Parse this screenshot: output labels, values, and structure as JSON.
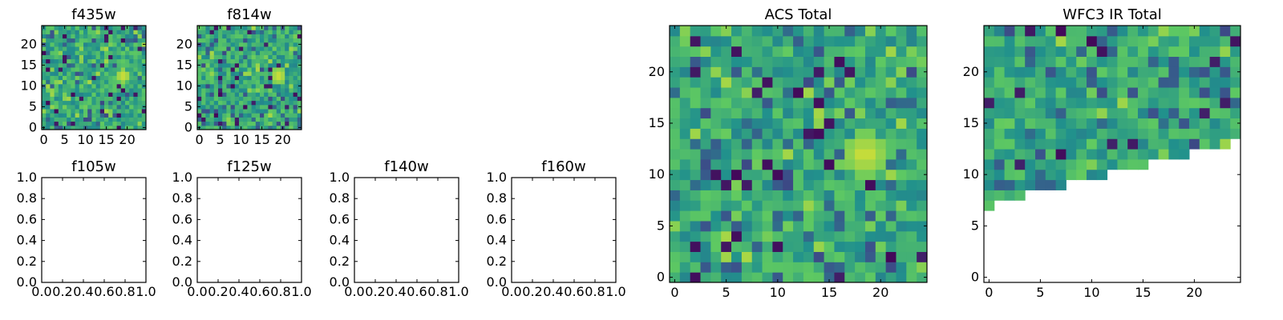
{
  "figure": {
    "colors": {
      "background": "#ffffff",
      "axis": "#000000",
      "colormap": [
        "#440154",
        "#3b528b",
        "#21918c",
        "#5ec962",
        "#fde725"
      ]
    }
  },
  "chart_data": [
    {
      "type": "heatmap",
      "title": "f435w",
      "grid_size": 25,
      "xlim": [
        -0.5,
        24.5
      ],
      "ylim": [
        -0.5,
        24.5
      ],
      "xticks": [
        0,
        5,
        10,
        15,
        20
      ],
      "yticks": [
        0,
        5,
        10,
        15,
        20
      ],
      "xtick_labels": [
        "0",
        "5",
        "10",
        "15",
        "20"
      ],
      "ytick_labels": [
        "0",
        "5",
        "10",
        "15",
        "20"
      ],
      "colormap": "viridis",
      "valid_region": "full",
      "seed": 11,
      "peak": {
        "x": 19,
        "y": 12.5,
        "radius": 1.8
      },
      "grid": false
    },
    {
      "type": "heatmap",
      "title": "f814w",
      "grid_size": 25,
      "xlim": [
        -0.5,
        24.5
      ],
      "ylim": [
        -0.5,
        24.5
      ],
      "xticks": [
        0,
        5,
        10,
        15,
        20
      ],
      "yticks": [
        0,
        5,
        10,
        15,
        20
      ],
      "xtick_labels": [
        "0",
        "5",
        "10",
        "15",
        "20"
      ],
      "ytick_labels": [
        "0",
        "5",
        "10",
        "15",
        "20"
      ],
      "colormap": "viridis",
      "valid_region": "full",
      "seed": 23,
      "peak": {
        "x": 19,
        "y": 12.5,
        "radius": 2.0
      },
      "grid": false
    },
    {
      "type": "empty",
      "title": "f105w",
      "xlim": [
        0,
        1
      ],
      "ylim": [
        0,
        1
      ],
      "xtick_labels": [
        "0.0",
        "0.2",
        "0.4",
        "0.6",
        "0.8",
        "1.0"
      ],
      "ytick_labels": [
        "0.0",
        "0.2",
        "0.4",
        "0.6",
        "0.8",
        "1.0"
      ]
    },
    {
      "type": "empty",
      "title": "f125w",
      "xlim": [
        0,
        1
      ],
      "ylim": [
        0,
        1
      ],
      "xtick_labels": [
        "0.0",
        "0.2",
        "0.4",
        "0.6",
        "0.8",
        "1.0"
      ],
      "ytick_labels": [
        "0.0",
        "0.2",
        "0.4",
        "0.6",
        "0.8",
        "1.0"
      ]
    },
    {
      "type": "empty",
      "title": "f140w",
      "xlim": [
        0,
        1
      ],
      "ylim": [
        0,
        1
      ],
      "xtick_labels": [
        "0.0",
        "0.2",
        "0.4",
        "0.6",
        "0.8",
        "1.0"
      ],
      "ytick_labels": [
        "0.0",
        "0.2",
        "0.4",
        "0.6",
        "0.8",
        "1.0"
      ]
    },
    {
      "type": "empty",
      "title": "f160w",
      "xlim": [
        0,
        1
      ],
      "ylim": [
        0,
        1
      ],
      "xtick_labels": [
        "0.0",
        "0.2",
        "0.4",
        "0.6",
        "0.8",
        "1.0"
      ],
      "ytick_labels": [
        "0.0",
        "0.2",
        "0.4",
        "0.6",
        "0.8",
        "1.0"
      ]
    },
    {
      "type": "heatmap",
      "title": "ACS Total",
      "grid_size": 25,
      "xlim": [
        -0.5,
        24.5
      ],
      "ylim": [
        -0.5,
        24.5
      ],
      "xticks": [
        0,
        5,
        10,
        15,
        20
      ],
      "yticks": [
        0,
        5,
        10,
        15,
        20
      ],
      "xtick_labels": [
        "0",
        "5",
        "10",
        "15",
        "20"
      ],
      "ytick_labels": [
        "0",
        "5",
        "10",
        "15",
        "20"
      ],
      "colormap": "viridis",
      "valid_region": "full",
      "seed": 37,
      "peak": {
        "x": 18.5,
        "y": 12,
        "radius": 2.2
      },
      "grid": false
    },
    {
      "type": "heatmap",
      "title": "WFC3 IR Total",
      "grid_size": 25,
      "xlim": [
        -0.5,
        24.5
      ],
      "ylim": [
        -0.5,
        24.5
      ],
      "xticks": [
        0,
        5,
        10,
        15,
        20
      ],
      "yticks": [
        0,
        5,
        10,
        15,
        20
      ],
      "xtick_labels": [
        "0",
        "5",
        "10",
        "15",
        "20"
      ],
      "ytick_labels": [
        "0",
        "5",
        "10",
        "15",
        "20"
      ],
      "colormap": "viridis",
      "valid_region": "above-diagonal",
      "diagonal": {
        "y_at_x0": 7,
        "slope": 0.26
      },
      "seed": 53,
      "peak": null,
      "grid": false
    }
  ]
}
